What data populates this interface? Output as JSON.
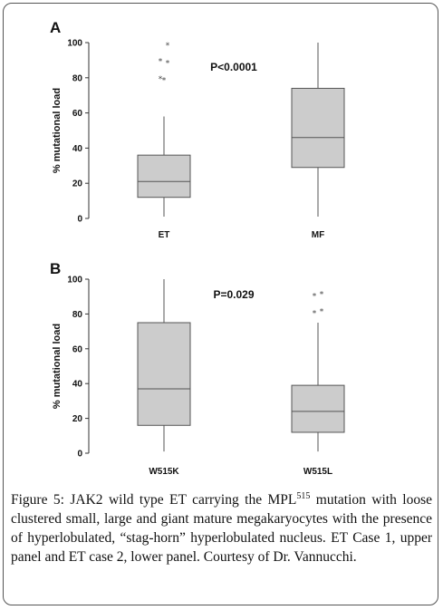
{
  "chart_data": [
    {
      "type": "box",
      "panel_label": "A",
      "ylabel": "% mutational load",
      "ylim": [
        0,
        100
      ],
      "yticks": [
        "0",
        "20",
        "40",
        "60",
        "80",
        "100"
      ],
      "annotation": "P<0.0001",
      "categories": [
        "ET",
        "MF"
      ],
      "boxes": [
        {
          "category": "ET",
          "min": 1,
          "q1": 12,
          "median": 21,
          "q3": 36,
          "max": 58,
          "outliers": [
            79,
            80,
            89,
            90,
            99
          ]
        },
        {
          "category": "MF",
          "min": 1,
          "q1": 29,
          "median": 46,
          "q3": 74,
          "max": 100,
          "outliers": []
        }
      ]
    },
    {
      "type": "box",
      "panel_label": "B",
      "ylabel": "% mutational load",
      "ylim": [
        0,
        100
      ],
      "yticks": [
        "0",
        "20",
        "40",
        "60",
        "80",
        "100"
      ],
      "annotation": "P=0.029",
      "categories": [
        "W515K",
        "W515L"
      ],
      "boxes": [
        {
          "category": "W515K",
          "min": 1,
          "q1": 16,
          "median": 37,
          "q3": 75,
          "max": 100,
          "outliers": []
        },
        {
          "category": "W515L",
          "min": 1,
          "q1": 12,
          "median": 24,
          "q3": 39,
          "max": 75,
          "outliers": [
            81,
            82,
            91,
            92
          ]
        }
      ]
    }
  ],
  "colors": {
    "box_fill": "#cccccc",
    "box_stroke": "#555555",
    "text": "#111111"
  },
  "caption": {
    "label": "Figure 5:",
    "text_before_sup": " JAK2 wild type ET carrying the MPL",
    "sup": "515",
    "text_after_sup": " mutation with loose clustered small, large and giant mature megakaryocytes with the presence of hyperlobulated, “stag-horn” hyperlobulated nucleus. ET Case 1, upper panel and ET case 2, lower panel. Courtesy of Dr. Vannucchi."
  }
}
